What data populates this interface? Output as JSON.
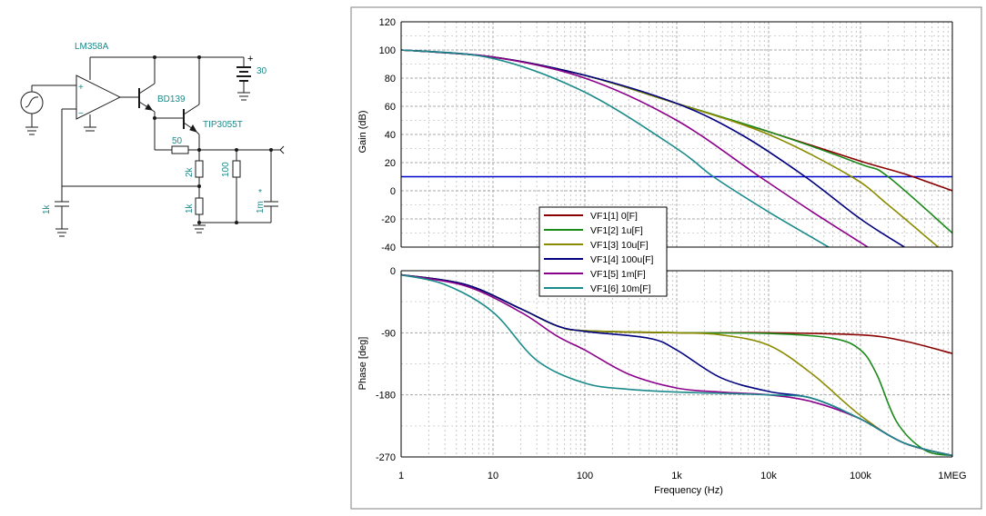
{
  "schematic": {
    "opamp_label": "LM358A",
    "transistor1_label": "BD139",
    "transistor2_label": "TIP3055T",
    "battery_value": "30",
    "battery_plus": "+",
    "r_emitter": "50",
    "r_top": "2k",
    "r_bottom": "1k",
    "r_load": "100",
    "c_load": "1m",
    "c_load_mark": "*",
    "c_left": "1k",
    "opamp_plus": "+",
    "opamp_minus": "−"
  },
  "chart_data": [
    {
      "type": "line",
      "ylabel": "Gain (dB)",
      "ylim": [
        -40,
        120
      ],
      "yticks": [
        "120",
        "100",
        "80",
        "60",
        "40",
        "20",
        "0",
        "-20",
        "-40"
      ],
      "x_scale": "log",
      "xlim": [
        1,
        1000000
      ],
      "grid": true,
      "hline": 10,
      "series": [
        {
          "name": "VF1[1]  0[F]",
          "color": "#8b0000",
          "x": [
            1,
            10,
            100,
            1000,
            10000,
            100000,
            300000,
            1000000
          ],
          "values": [
            100,
            95,
            82,
            62,
            42,
            21,
            12,
            0
          ]
        },
        {
          "name": "VF1[2]  1u[F]",
          "color": "#1a8a1a",
          "x": [
            1,
            10,
            100,
            1000,
            10000,
            100000,
            200000,
            1000000
          ],
          "values": [
            100,
            95,
            82,
            62,
            42,
            19,
            10,
            -30
          ]
        },
        {
          "name": "VF1[3]  10u[F]",
          "color": "#8b8b00",
          "x": [
            1,
            10,
            100,
            1000,
            10000,
            80000,
            200000,
            700000
          ],
          "values": [
            100,
            95,
            82,
            62,
            40,
            10,
            -10,
            -40
          ]
        },
        {
          "name": "VF1[4]  100u[F]",
          "color": "#000080",
          "x": [
            1,
            10,
            100,
            1000,
            5000,
            25000,
            100000,
            300000
          ],
          "values": [
            100,
            95,
            82,
            62,
            40,
            10,
            -20,
            -40
          ]
        },
        {
          "name": "VF1[5]  1m[F]",
          "color": "#8b008b",
          "x": [
            1,
            10,
            100,
            1000,
            8000,
            30000,
            120000
          ],
          "values": [
            100,
            95,
            80,
            50,
            10,
            -15,
            -40
          ]
        },
        {
          "name": "VF1[6]  10m[F]",
          "color": "#1a8a8a",
          "x": [
            1,
            10,
            100,
            1000,
            2500,
            10000,
            45000
          ],
          "values": [
            100,
            94,
            70,
            30,
            10,
            -15,
            -40
          ]
        }
      ]
    },
    {
      "type": "line",
      "ylabel": "Phase [deg]",
      "ylim": [
        -270,
        0
      ],
      "yticks": [
        "0",
        "-90",
        "-180",
        "-270"
      ],
      "x_scale": "log",
      "xlim": [
        1,
        1000000
      ],
      "xlabel": "Frequency (Hz)",
      "xticks": [
        "1",
        "10",
        "100",
        "1k",
        "10k",
        "100k",
        "1MEG"
      ],
      "grid": true,
      "series": [
        {
          "name": "VF1[1]  0[F]",
          "color": "#8b0000",
          "x": [
            1,
            5,
            20,
            50,
            100,
            1000,
            10000,
            100000,
            300000,
            1000000
          ],
          "values": [
            -6,
            -20,
            -55,
            -80,
            -87,
            -90,
            -90,
            -93,
            -102,
            -120
          ]
        },
        {
          "name": "VF1[2]  1u[F]",
          "color": "#1a8a1a",
          "x": [
            1,
            5,
            20,
            50,
            100,
            1000,
            10000,
            50000,
            100000,
            150000,
            250000,
            500000,
            1000000
          ],
          "values": [
            -6,
            -20,
            -55,
            -80,
            -87,
            -90,
            -91,
            -98,
            -115,
            -150,
            -220,
            -260,
            -268
          ]
        },
        {
          "name": "VF1[3]  10u[F]",
          "color": "#8b8b00",
          "x": [
            1,
            5,
            20,
            50,
            100,
            1000,
            3000,
            10000,
            30000,
            100000,
            300000,
            1000000
          ],
          "values": [
            -6,
            -20,
            -55,
            -80,
            -87,
            -90,
            -93,
            -108,
            -150,
            -210,
            -250,
            -268
          ]
        },
        {
          "name": "VF1[4]  100u[F]",
          "color": "#000080",
          "x": [
            1,
            5,
            20,
            50,
            100,
            500,
            1000,
            3000,
            10000,
            30000,
            100000,
            300000,
            1000000
          ],
          "values": [
            -6,
            -20,
            -55,
            -80,
            -88,
            -98,
            -115,
            -155,
            -175,
            -185,
            -215,
            -250,
            -268
          ]
        },
        {
          "name": "VF1[5]  1m[F]",
          "color": "#8b008b",
          "x": [
            1,
            5,
            20,
            50,
            100,
            300,
            1000,
            3000,
            10000,
            30000,
            100000,
            300000,
            1000000
          ],
          "values": [
            -6,
            -22,
            -60,
            -95,
            -115,
            -150,
            -170,
            -176,
            -180,
            -190,
            -215,
            -250,
            -268
          ]
        },
        {
          "name": "VF1[6]  10m[F]",
          "color": "#1a8a8a",
          "x": [
            1,
            3,
            10,
            30,
            100,
            300,
            1000,
            10000,
            30000,
            100000,
            300000,
            1000000
          ],
          "values": [
            -6,
            -20,
            -60,
            -130,
            -163,
            -172,
            -176,
            -180,
            -185,
            -215,
            -250,
            -268
          ]
        }
      ]
    }
  ]
}
